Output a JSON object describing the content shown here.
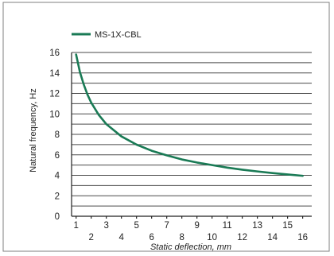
{
  "chart_data": {
    "type": "line",
    "xlabel": "Static deflection, mm",
    "ylabel": "Natural frequency, Hz",
    "xlim": [
      0.7,
      16.6
    ],
    "ylim": [
      0,
      16
    ],
    "x_ticks_top_row": [
      1,
      3,
      5,
      7,
      9,
      11,
      13,
      15
    ],
    "x_ticks_bottom_row": [
      2,
      4,
      6,
      8,
      10,
      12,
      14,
      16
    ],
    "y_ticks": [
      0,
      2,
      4,
      6,
      8,
      10,
      12,
      14,
      16
    ],
    "grid": "horizontal every 1 Hz",
    "legend": "top-left",
    "series": [
      {
        "name": "MS-1X-CBL",
        "color": "#1a7a55",
        "x": [
          1,
          1.25,
          1.5,
          1.75,
          2,
          2.5,
          3,
          4,
          5,
          6,
          7,
          8,
          9,
          10,
          11,
          12,
          13,
          14,
          15,
          16
        ],
        "y": [
          15.8,
          14.1,
          12.9,
          11.9,
          11.1,
          9.9,
          9.0,
          7.8,
          7.0,
          6.4,
          5.95,
          5.55,
          5.25,
          5.0,
          4.75,
          4.55,
          4.38,
          4.22,
          4.08,
          3.95
        ]
      }
    ]
  }
}
